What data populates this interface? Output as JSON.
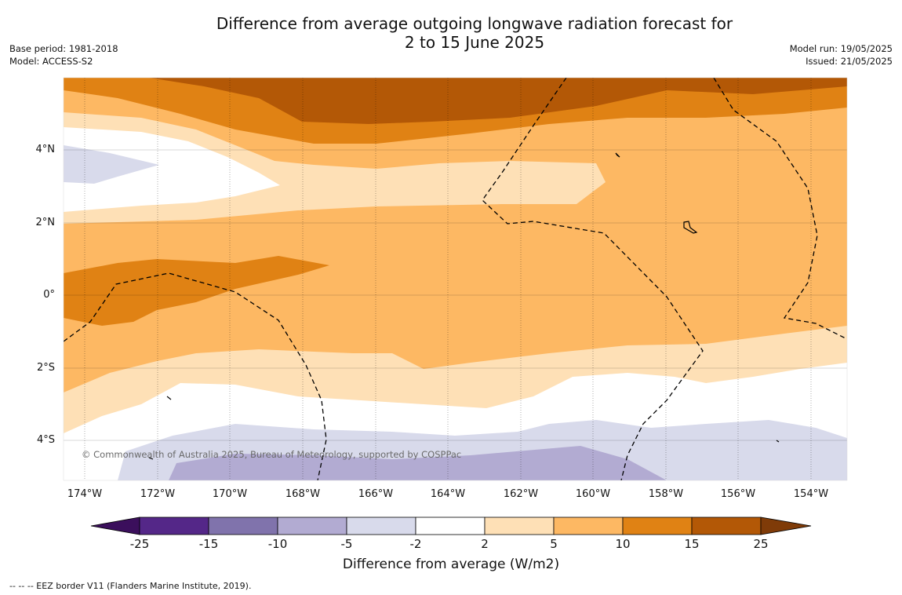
{
  "title_line1": "Difference from average outgoing longwave radiation forecast for",
  "title_line2": "2 to 15 June 2025",
  "meta_left": {
    "base_period": "Base period: 1981-2018",
    "model": "Model: ACCESS-S2"
  },
  "meta_right": {
    "model_run": "Model run: 19/05/2025",
    "issued": "Issued: 21/05/2025"
  },
  "copyright": "© Commonwealth of Australia 2025, Bureau of Meteorology, supported by COSPPac",
  "lat_labels": [
    "4°N",
    "2°N",
    "0°",
    "2°S",
    "4°S"
  ],
  "lon_labels": [
    "174°W",
    "172°W",
    "170°W",
    "168°W",
    "166°W",
    "164°W",
    "162°W",
    "160°W",
    "158°W",
    "156°W",
    "154°W"
  ],
  "colorbar": {
    "ticks": [
      "-25",
      "-15",
      "-10",
      "-5",
      "-2",
      "2",
      "5",
      "10",
      "15",
      "25"
    ],
    "colors": [
      "#3b0f5c",
      "#542788",
      "#8073ac",
      "#b2abd2",
      "#d8daeb",
      "#ffffff",
      "#fee0b6",
      "#fdb863",
      "#e08214",
      "#b35806",
      "#7f3b08"
    ],
    "label": "Difference from average (W/m2)"
  },
  "legend_note": "--  --  -- EEZ border V11 (Flanders Marine Institute, 2019)."
}
